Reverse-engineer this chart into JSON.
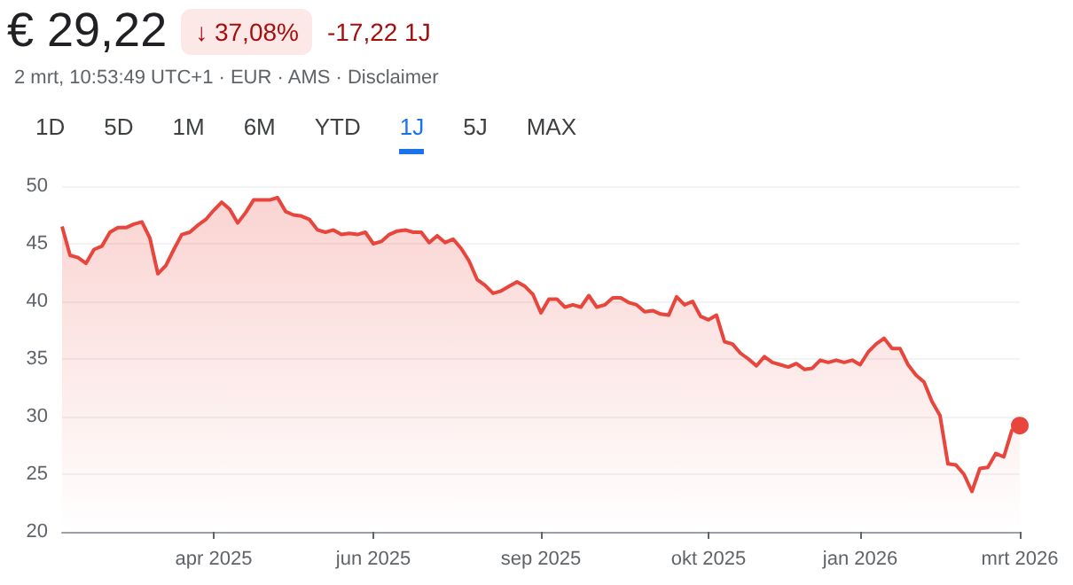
{
  "chart_data": {
    "type": "area",
    "title": "€ 29,22",
    "subtitle": "2 mrt, 10:53:49 UTC+1 · EUR · AMS · Disclaimer",
    "annotations": [
      "↓ 37,08%",
      "-17,22 1J",
      "1D",
      "5D",
      "1M",
      "6M",
      "YTD",
      "1J",
      "5J",
      "MAX"
    ],
    "categories": [
      null,
      null,
      null,
      null,
      null,
      null,
      null,
      null,
      null,
      null,
      null,
      null,
      null,
      null,
      null,
      null,
      null,
      null,
      null,
      "apr 2025",
      null,
      null,
      null,
      null,
      null,
      null,
      null,
      null,
      null,
      null,
      null,
      null,
      null,
      null,
      null,
      null,
      null,
      null,
      null,
      "jun 2025",
      null,
      null,
      null,
      null,
      null,
      null,
      null,
      null,
      null,
      null,
      null,
      null,
      null,
      null,
      null,
      null,
      null,
      null,
      null,
      null,
      "sep 2025",
      null,
      null,
      null,
      null,
      null,
      null,
      null,
      null,
      null,
      null,
      null,
      null,
      null,
      null,
      null,
      null,
      null,
      null,
      null,
      null,
      "okt 2025",
      null,
      null,
      null,
      null,
      null,
      null,
      null,
      null,
      null,
      null,
      null,
      null,
      null,
      null,
      null,
      null,
      null,
      null,
      "jan 2026",
      null,
      null,
      null,
      null,
      null,
      null,
      null,
      null,
      null,
      null,
      null,
      null,
      null,
      null,
      null,
      null,
      null,
      null,
      null,
      "mrt 2026"
    ],
    "series": [
      {
        "color": "#e8453c",
        "values": [
          46.5,
          44,
          43.8,
          43.3,
          44.5,
          44.8,
          46,
          46.4,
          46.4,
          46.7,
          46.9,
          45.5,
          42.4,
          43.1,
          44.5,
          45.8,
          46,
          46.6,
          47.1,
          47.9,
          48.6,
          48,
          46.8,
          47.7,
          48.8,
          48.8,
          48.8,
          49,
          47.8,
          47.5,
          47.4,
          47.1,
          46.2,
          46,
          46.2,
          45.8,
          45.9,
          45.8,
          46,
          45,
          45.2,
          45.8,
          46.1,
          46.2,
          46,
          46,
          45.1,
          45.7,
          45.1,
          45.4,
          44.6,
          43.5,
          41.9,
          41.4,
          40.7,
          40.9,
          41.3,
          41.7,
          41.3,
          40.6,
          39,
          40.2,
          40.2,
          39.5,
          39.7,
          39.5,
          40.5,
          39.5,
          39.7,
          40.3,
          40.3,
          39.9,
          39.7,
          39.1,
          39.2,
          38.9,
          38.8,
          40.4,
          39.7,
          40,
          38.7,
          38.4,
          38.8,
          36.5,
          36.3,
          35.5,
          35,
          34.4,
          35.2,
          34.7,
          34.5,
          34.3,
          34.6,
          34.1,
          34.2,
          34.9,
          34.7,
          34.9,
          34.7,
          34.9,
          34.5,
          35.6,
          36.3,
          36.8,
          35.9,
          35.9,
          34.5,
          33.6,
          33,
          31.3,
          30.1,
          25.9,
          25.8,
          25,
          23.5,
          25.5,
          25.6,
          26.8,
          26.5,
          28.8,
          29.22
        ]
      }
    ],
    "ylim": [
      20,
      50
    ],
    "yticks": [
      20,
      25,
      30,
      35,
      40,
      45,
      50
    ],
    "grid": "y"
  }
}
